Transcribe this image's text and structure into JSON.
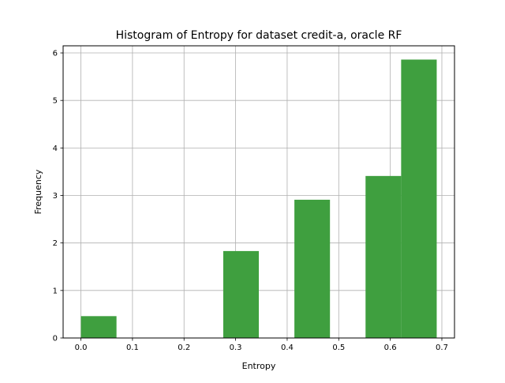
{
  "chart_data": {
    "type": "bar",
    "title": "Histogram of Entropy for dataset credit-a, oracle RF",
    "xlabel": "Entropy",
    "ylabel": "Frequency",
    "xlim": [
      -0.0345,
      0.7245
    ],
    "ylim": [
      0,
      6.15
    ],
    "grid": true,
    "bar_color": "#3f9f3f",
    "bins": [
      {
        "x0": 0.0,
        "x1": 0.069,
        "value": 0.46
      },
      {
        "x0": 0.069,
        "x1": 0.138,
        "value": 0
      },
      {
        "x0": 0.138,
        "x1": 0.207,
        "value": 0
      },
      {
        "x0": 0.207,
        "x1": 0.276,
        "value": 0
      },
      {
        "x0": 0.276,
        "x1": 0.345,
        "value": 1.83
      },
      {
        "x0": 0.345,
        "x1": 0.414,
        "value": 0
      },
      {
        "x0": 0.414,
        "x1": 0.483,
        "value": 2.91
      },
      {
        "x0": 0.483,
        "x1": 0.552,
        "value": 0
      },
      {
        "x0": 0.552,
        "x1": 0.621,
        "value": 3.41
      },
      {
        "x0": 0.621,
        "x1": 0.69,
        "value": 5.86
      }
    ],
    "xticks": [
      {
        "value": 0.0,
        "label": "0.0"
      },
      {
        "value": 0.1,
        "label": "0.1"
      },
      {
        "value": 0.2,
        "label": "0.2"
      },
      {
        "value": 0.3,
        "label": "0.3"
      },
      {
        "value": 0.4,
        "label": "0.4"
      },
      {
        "value": 0.5,
        "label": "0.5"
      },
      {
        "value": 0.6,
        "label": "0.6"
      },
      {
        "value": 0.7,
        "label": "0.7"
      }
    ],
    "yticks": [
      {
        "value": 0,
        "label": "0"
      },
      {
        "value": 1,
        "label": "1"
      },
      {
        "value": 2,
        "label": "2"
      },
      {
        "value": 3,
        "label": "3"
      },
      {
        "value": 4,
        "label": "4"
      },
      {
        "value": 5,
        "label": "5"
      },
      {
        "value": 6,
        "label": "6"
      }
    ]
  }
}
